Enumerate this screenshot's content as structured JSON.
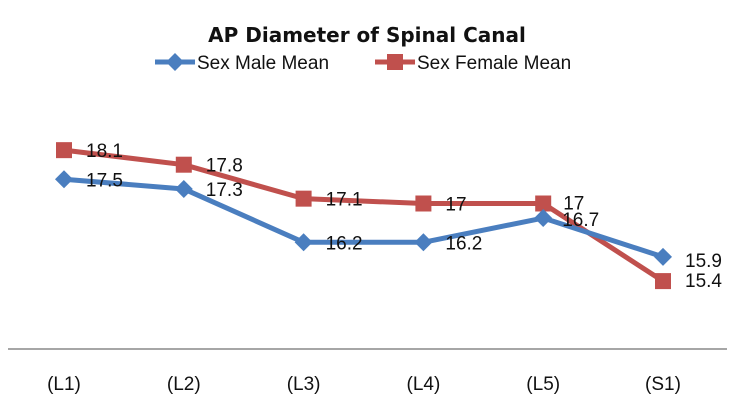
{
  "chart_data": {
    "type": "line",
    "title": "AP Diameter of Spinal Canal",
    "xlabel": "",
    "ylabel": "",
    "categories": [
      "(L1)",
      "(L2)",
      "(L3)",
      "(L4)",
      "(L5)",
      "(S1)"
    ],
    "series": [
      {
        "name": "Sex Male Mean",
        "color": "#4a7ebf",
        "marker": "diamond",
        "values": [
          17.5,
          17.3,
          16.2,
          16.2,
          16.7,
          15.9
        ],
        "labels": [
          "17.5",
          "17.3",
          "16.2",
          "16.2",
          "16.7",
          "15.9"
        ]
      },
      {
        "name": "Sex Female Mean",
        "color": "#c0504d",
        "marker": "square",
        "values": [
          18.1,
          17.8,
          17.1,
          17,
          17,
          15.4
        ],
        "labels": [
          "18.1",
          "17.8",
          "17.1",
          "17",
          "17",
          "15.4"
        ]
      }
    ],
    "ylim": [
      14,
      19
    ],
    "grid": false,
    "y_axis_visible": false,
    "legend": "top-center",
    "axis_color": "#a6a6a6"
  }
}
